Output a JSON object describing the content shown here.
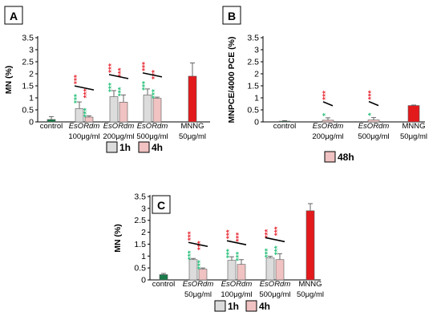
{
  "chart_data": [
    {
      "panel_label": "A",
      "type": "bar",
      "ylabel": "MN (%)",
      "ylim": [
        0,
        3.5
      ],
      "yticks": [
        "0",
        "0.5",
        "1",
        "1.5",
        "2",
        "2.5",
        "3",
        "3.5"
      ],
      "categories": [
        {
          "lines": [
            "control"
          ],
          "italic_first": false
        },
        {
          "lines": [
            "EsORdm",
            "100μg/ml"
          ],
          "italic_first": true
        },
        {
          "lines": [
            "EsORdm",
            "200μg/ml"
          ],
          "italic_first": true
        },
        {
          "lines": [
            "EsORdm",
            "500μg/ml"
          ],
          "italic_first": true
        },
        {
          "lines": [
            "MNNG",
            "50μg/ml"
          ],
          "italic_first": false
        }
      ],
      "legend": [
        "1h",
        "4h"
      ],
      "bars": [
        {
          "category": 0,
          "series": "control",
          "value": 0.1,
          "err": 0.12,
          "color": "#1a7a4a"
        },
        {
          "category": 1,
          "series": "1h",
          "value": 0.55,
          "err": 0.28,
          "color": "#dcdcdc"
        },
        {
          "category": 1,
          "series": "4h",
          "value": 0.2,
          "err": 0.05,
          "color": "#f0c2c2"
        },
        {
          "category": 2,
          "series": "1h",
          "value": 1.05,
          "err": 0.25,
          "color": "#dcdcdc"
        },
        {
          "category": 2,
          "series": "4h",
          "value": 0.82,
          "err": 0.3,
          "color": "#f0c2c2"
        },
        {
          "category": 3,
          "series": "1h",
          "value": 1.12,
          "err": 0.25,
          "color": "#dcdcdc"
        },
        {
          "category": 3,
          "series": "4h",
          "value": 0.98,
          "err": 0.05,
          "color": "#f0c2c2"
        },
        {
          "category": 4,
          "series": "MNNG",
          "value": 1.9,
          "err": 0.55,
          "color": "#e31a1c"
        }
      ],
      "annotations": [
        {
          "bar": 1,
          "stars": [
            "***",
            "***"
          ]
        },
        {
          "bar": 2,
          "stars": [
            "***",
            "***"
          ]
        },
        {
          "bar": 3,
          "stars": [
            "***",
            "***"
          ]
        },
        {
          "bar": 4,
          "stars": [
            "***",
            "***"
          ]
        },
        {
          "bar": 5,
          "stars": [
            "***",
            "***"
          ]
        },
        {
          "bar": 6,
          "stars": [
            "***",
            "***"
          ]
        }
      ]
    },
    {
      "panel_label": "B",
      "type": "bar",
      "ylabel": "MNPCE/4000 PCE (%)",
      "ylim": [
        0,
        3.5
      ],
      "yticks": [
        "0",
        "0.5",
        "1",
        "1.5",
        "2",
        "2.5",
        "3",
        "3.5"
      ],
      "categories": [
        {
          "lines": [
            "control"
          ],
          "italic_first": false
        },
        {
          "lines": [
            "EsORdm",
            "200μg/ml"
          ],
          "italic_first": true
        },
        {
          "lines": [
            "EsORdm",
            "500μg/ml"
          ],
          "italic_first": true
        },
        {
          "lines": [
            "MNNG",
            "50μg/ml"
          ],
          "italic_first": false
        }
      ],
      "legend": [
        "48h"
      ],
      "bars": [
        {
          "category": 0,
          "series": "control",
          "value": 0.03,
          "err": 0.02,
          "color": "#1a7a4a"
        },
        {
          "category": 1,
          "series": "48h",
          "value": 0.07,
          "err": 0.1,
          "color": "#f0c2c2"
        },
        {
          "category": 2,
          "series": "48h",
          "value": 0.08,
          "err": 0.1,
          "color": "#f0c2c2"
        },
        {
          "category": 3,
          "series": "MNNG",
          "value": 0.68,
          "err": 0.02,
          "color": "#e31a1c"
        }
      ],
      "annotations": [
        {
          "bar": 1,
          "stars": [
            "***",
            "*"
          ]
        },
        {
          "bar": 2,
          "stars": [
            "***",
            "*"
          ]
        }
      ]
    },
    {
      "panel_label": "C",
      "type": "bar",
      "ylabel": "MN (%)",
      "ylim": [
        0,
        3.5
      ],
      "yticks": [
        "0",
        "0.5",
        "1",
        "1.5",
        "2",
        "2.5",
        "3",
        "3.5"
      ],
      "categories": [
        {
          "lines": [
            "control"
          ],
          "italic_first": false
        },
        {
          "lines": [
            "EsORdm",
            "50μg/ml"
          ],
          "italic_first": true
        },
        {
          "lines": [
            "EsORdm",
            "100μg/ml"
          ],
          "italic_first": true
        },
        {
          "lines": [
            "EsORdm",
            "500μg/ml"
          ],
          "italic_first": true
        },
        {
          "lines": [
            "MNNG",
            "50μg/ml"
          ],
          "italic_first": false
        }
      ],
      "legend": [
        "1h",
        "4h"
      ],
      "bars": [
        {
          "category": 0,
          "series": "control",
          "value": 0.22,
          "err": 0.05,
          "color": "#1a7a4a"
        },
        {
          "category": 1,
          "series": "1h",
          "value": 0.85,
          "err": 0.05,
          "color": "#dcdcdc"
        },
        {
          "category": 1,
          "series": "4h",
          "value": 0.45,
          "err": 0.05,
          "color": "#f0c2c2"
        },
        {
          "category": 2,
          "series": "1h",
          "value": 0.82,
          "err": 0.15,
          "color": "#dcdcdc"
        },
        {
          "category": 2,
          "series": "4h",
          "value": 0.65,
          "err": 0.2,
          "color": "#f0c2c2"
        },
        {
          "category": 3,
          "series": "1h",
          "value": 0.92,
          "err": 0.07,
          "color": "#dcdcdc"
        },
        {
          "category": 3,
          "series": "4h",
          "value": 0.85,
          "err": 0.25,
          "color": "#f0c2c2"
        },
        {
          "category": 4,
          "series": "MNNG",
          "value": 2.9,
          "err": 0.3,
          "color": "#e31a1c"
        }
      ],
      "annotations": [
        {
          "bar": 1,
          "stars": [
            "***",
            "***"
          ]
        },
        {
          "bar": 2,
          "stars": [
            "***",
            "***"
          ]
        },
        {
          "bar": 3,
          "stars": [
            "***",
            "***"
          ]
        },
        {
          "bar": 4,
          "stars": [
            "***",
            "***"
          ]
        },
        {
          "bar": 5,
          "stars": [
            "***",
            "***"
          ]
        },
        {
          "bar": 6,
          "stars": [
            "***",
            "***"
          ]
        }
      ]
    }
  ],
  "colors": {
    "control": "#1a7a4a",
    "1h": "#dcdcdc",
    "4h": "#f0c2c2",
    "48h": "#f0c2c2",
    "MNNG": "#e31a1c",
    "star_red": "#e8303a",
    "star_green": "#2ec27e"
  }
}
